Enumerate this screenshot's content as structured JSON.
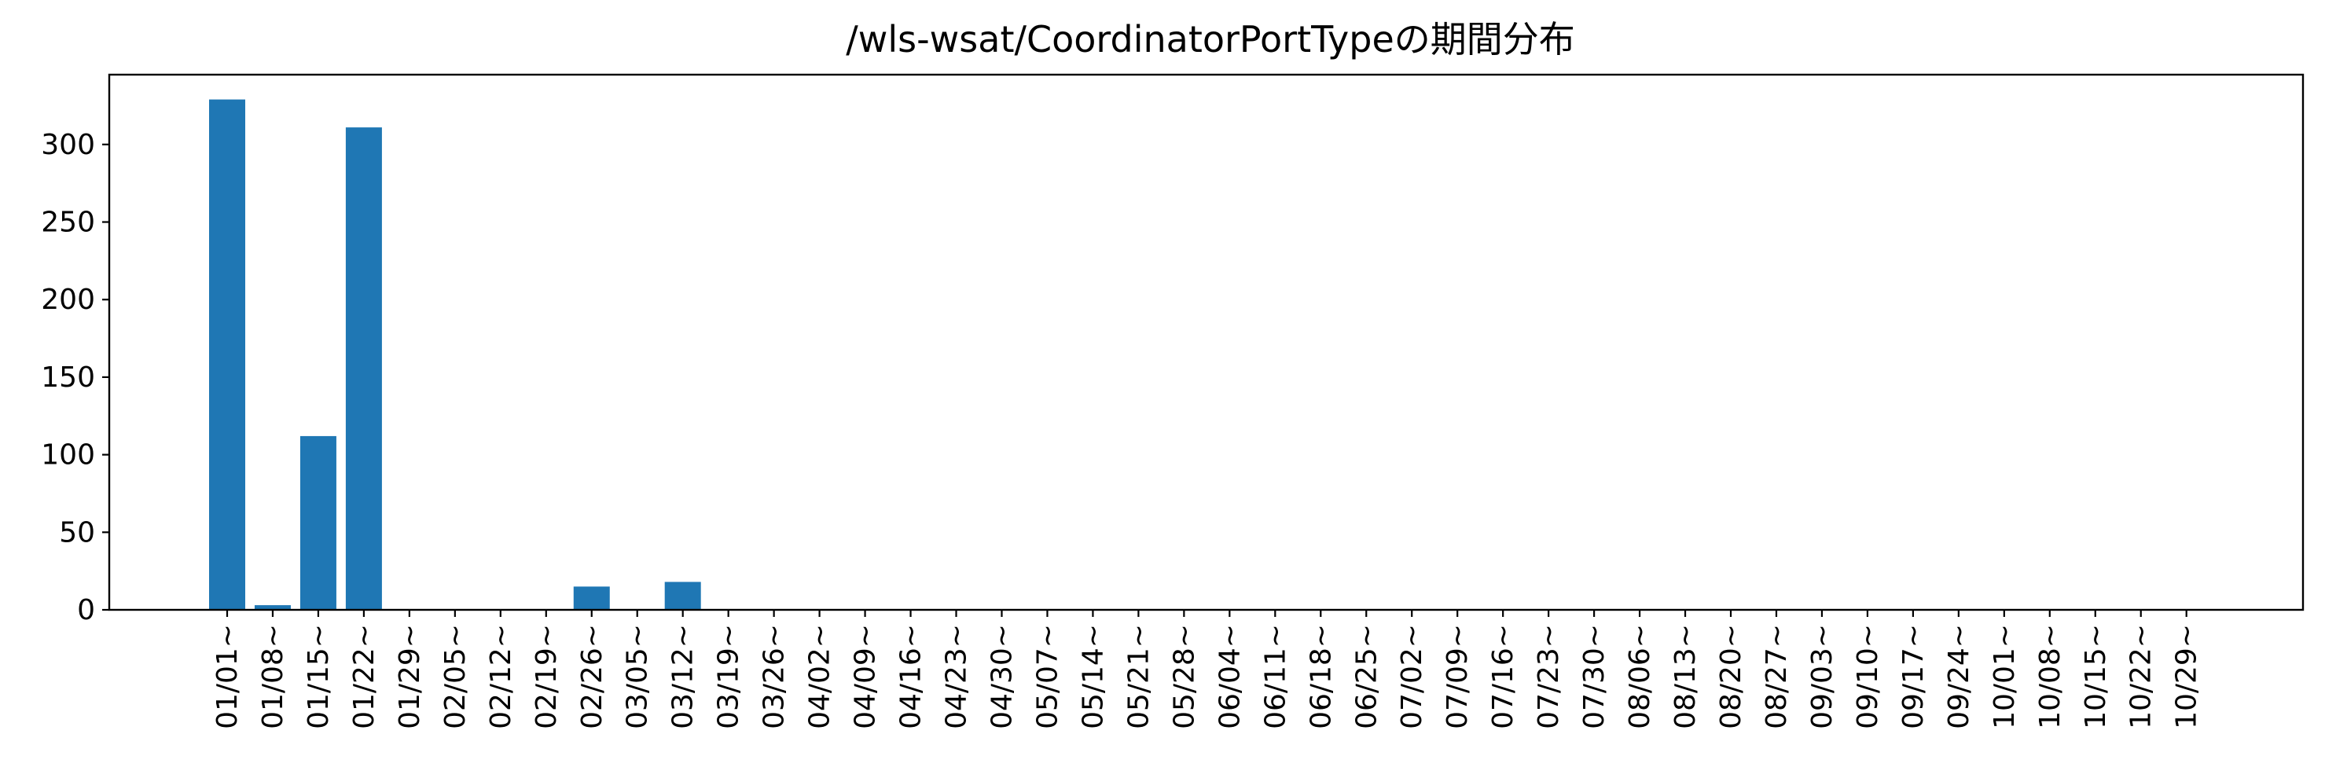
{
  "chart_data": {
    "type": "bar",
    "title": "/wls-wsat/CoordinatorPortTypeの期間分布",
    "xlabel": "",
    "ylabel": "",
    "categories": [
      "01/01~",
      "01/08~",
      "01/15~",
      "01/22~",
      "01/29~",
      "02/05~",
      "02/12~",
      "02/19~",
      "02/26~",
      "03/05~",
      "03/12~",
      "03/19~",
      "03/26~",
      "04/02~",
      "04/09~",
      "04/16~",
      "04/23~",
      "04/30~",
      "05/07~",
      "05/14~",
      "05/21~",
      "05/28~",
      "06/04~",
      "06/11~",
      "06/18~",
      "06/25~",
      "07/02~",
      "07/09~",
      "07/16~",
      "07/23~",
      "07/30~",
      "08/06~",
      "08/13~",
      "08/20~",
      "08/27~",
      "09/03~",
      "09/10~",
      "09/17~",
      "09/24~",
      "10/01~",
      "10/08~",
      "10/15~",
      "10/22~",
      "10/29~"
    ],
    "values": [
      329,
      3,
      112,
      311,
      0,
      0,
      0,
      0,
      15,
      0,
      18,
      0,
      0,
      0,
      0,
      0,
      0,
      0,
      0,
      0,
      0,
      0,
      0,
      0,
      0,
      0,
      0,
      0,
      0,
      0,
      0,
      0,
      0,
      0,
      0,
      0,
      0,
      0,
      0,
      0,
      0,
      0,
      0,
      0
    ],
    "ylim": [
      0,
      345
    ],
    "yticks": [
      0,
      50,
      100,
      150,
      200,
      250,
      300
    ],
    "grid": false,
    "legend": "none",
    "bar_color": "#1f77b4"
  }
}
